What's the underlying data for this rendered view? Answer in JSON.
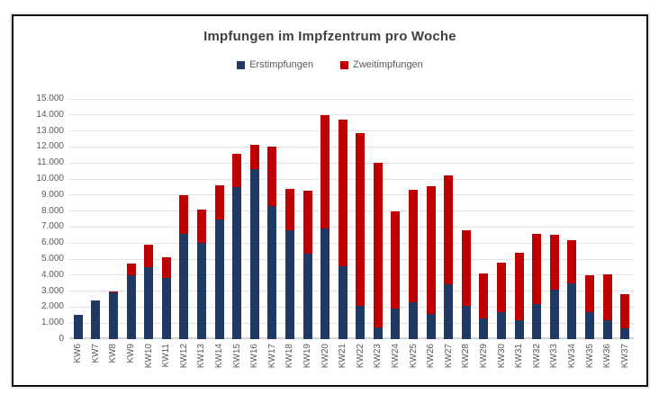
{
  "colors": {
    "erstimpfungen": "#1F3864",
    "zweitimpfungen": "#C00000",
    "title_text": "#404040",
    "axis_text": "#595959",
    "gridline": "#E2E2E2",
    "frame_border": "#0D0D0D"
  },
  "chart_data": {
    "type": "bar",
    "stacked": true,
    "title": "Impfungen im Impfzentrum pro Woche",
    "xlabel": "",
    "ylabel": "",
    "ylim": [
      0,
      15000
    ],
    "grid": true,
    "legend_position": "top",
    "y_tick_labels": [
      "0",
      "1.000",
      "2.000",
      "3.000",
      "4.000",
      "5.000",
      "6.000",
      "7.000",
      "8.000",
      "9.000",
      "10.000",
      "11.000",
      "12.000",
      "13.000",
      "14.000",
      "15.000"
    ],
    "categories": [
      "KW6",
      "KW7",
      "KW8",
      "KW9",
      "KW10",
      "KW11",
      "KW12",
      "KW13",
      "KW14",
      "KW15",
      "KW16",
      "KW17",
      "KW18",
      "KW19",
      "KW20",
      "KW21",
      "KW22",
      "KW23",
      "KW24",
      "KW25",
      "KW26",
      "KW27",
      "KW28",
      "KW29",
      "KW30",
      "KW31",
      "KW32",
      "KW33",
      "KW34",
      "KW35",
      "KW36",
      "KW37"
    ],
    "series": [
      {
        "name": "Erstimpfungen",
        "color": "#1F3864",
        "values": [
          1500,
          2400,
          2900,
          4000,
          4500,
          3800,
          6600,
          6000,
          7500,
          9500,
          10600,
          8300,
          6800,
          5350,
          6900,
          4550,
          2100,
          750,
          1900,
          2300,
          1600,
          3400,
          2100,
          1300,
          1700,
          1200,
          2200,
          3100,
          3500,
          1700,
          1200,
          700
        ]
      },
      {
        "name": "Zweitimpfungen",
        "color": "#C00000",
        "values": [
          0,
          0,
          100,
          700,
          1400,
          1300,
          2400,
          2100,
          2100,
          2100,
          1550,
          3700,
          2600,
          3900,
          7100,
          9150,
          10750,
          10250,
          6100,
          7000,
          7950,
          6800,
          4700,
          2800,
          3100,
          4200,
          4400,
          3400,
          2700,
          2300,
          2850,
          2100
        ]
      }
    ]
  }
}
